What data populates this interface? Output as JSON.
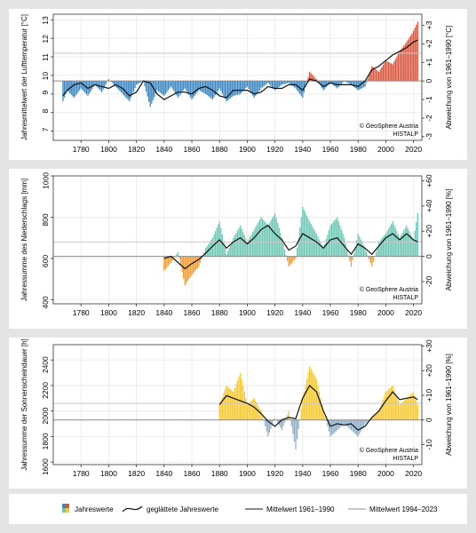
{
  "chart_data": [
    {
      "type": "bar",
      "ylabel": "Jahresmittelwert der Lufttemperatur [°C]",
      "y2label": "Abweichung von 1961–1990 [°C]",
      "ylim": [
        6.5,
        13.3
      ],
      "yticks": [
        7,
        8,
        9,
        10,
        11,
        12,
        13
      ],
      "y2ticks": [
        "-3",
        "-2",
        "-1",
        "0",
        "+1",
        "+2",
        "+3"
      ],
      "reference_1961_1990": 9.7,
      "mean_1994_2023": 11.2,
      "colors": {
        "above": "#d9553d",
        "below": "#3a86c2"
      },
      "credit": [
        "© GeoSphere Austria",
        "HISTALP"
      ],
      "x": [
        1767,
        1770,
        1775,
        1780,
        1785,
        1790,
        1795,
        1800,
        1805,
        1810,
        1815,
        1820,
        1825,
        1830,
        1835,
        1840,
        1845,
        1850,
        1855,
        1860,
        1865,
        1870,
        1875,
        1880,
        1885,
        1890,
        1895,
        1900,
        1905,
        1910,
        1915,
        1920,
        1925,
        1930,
        1935,
        1940,
        1945,
        1950,
        1955,
        1960,
        1965,
        1970,
        1975,
        1980,
        1985,
        1990,
        1995,
        2000,
        2005,
        2010,
        2015,
        2020,
        2023
      ],
      "values": [
        8.6,
        9.2,
        8.8,
        9.3,
        8.9,
        9.5,
        9.1,
        9.8,
        9.4,
        9.0,
        8.6,
        9.5,
        9.7,
        8.3,
        9.2,
        8.9,
        9.4,
        8.8,
        9.3,
        8.7,
        9.2,
        9.0,
        8.7,
        9.3,
        8.6,
        8.9,
        9.0,
        9.4,
        8.8,
        9.3,
        9.6,
        9.2,
        9.5,
        9.6,
        9.3,
        8.8,
        10.2,
        9.8,
        9.2,
        9.6,
        9.3,
        9.7,
        9.5,
        9.2,
        9.4,
        10.5,
        10.2,
        10.8,
        10.6,
        11.3,
        11.8,
        12.4,
        12.9
      ],
      "smoothed": [
        8.9,
        9.2,
        9.5,
        9.6,
        9.3,
        9.5,
        9.4,
        9.3,
        9.5,
        9.3,
        8.9,
        9.1,
        9.7,
        9.6,
        9.0,
        8.7,
        8.9,
        9.1,
        9.1,
        9.0,
        9.3,
        9.4,
        9.2,
        8.9,
        8.8,
        9.2,
        9.2,
        9.2,
        9.0,
        9.1,
        9.4,
        9.3,
        9.3,
        9.5,
        9.5,
        9.2,
        9.8,
        9.7,
        9.4,
        9.6,
        9.5,
        9.5,
        9.5,
        9.4,
        9.7,
        10.3,
        10.5,
        10.8,
        11.1,
        11.3,
        11.5,
        11.8,
        11.9
      ]
    },
    {
      "type": "bar",
      "ylabel": "Jahressumme des Niederschlags [mm]",
      "y2label": "Abweichung von 1961–1990 [%]",
      "ylim": [
        380,
        1000
      ],
      "yticks": [
        400,
        600,
        800,
        1000
      ],
      "y2ticks": [
        "-20",
        "0",
        "+20",
        "+40",
        "+60"
      ],
      "reference_1961_1990": 610,
      "mean_1994_2023": 680,
      "colors": {
        "above": "#6cc7b4",
        "below": "#f29a2e"
      },
      "credit": [
        "© GeoSphere Austria",
        "HISTALP"
      ],
      "x": [
        1840,
        1845,
        1850,
        1855,
        1860,
        1865,
        1870,
        1875,
        1880,
        1885,
        1890,
        1895,
        1900,
        1905,
        1910,
        1915,
        1920,
        1925,
        1930,
        1935,
        1940,
        1945,
        1950,
        1955,
        1960,
        1965,
        1970,
        1975,
        1980,
        1985,
        1990,
        1995,
        2000,
        2005,
        2010,
        2015,
        2020,
        2023
      ],
      "values": [
        540,
        580,
        630,
        470,
        520,
        560,
        650,
        700,
        780,
        620,
        700,
        760,
        680,
        740,
        800,
        760,
        820,
        700,
        560,
        600,
        850,
        780,
        720,
        650,
        760,
        800,
        700,
        560,
        720,
        650,
        560,
        680,
        720,
        780,
        700,
        760,
        690,
        820
      ],
      "smoothed": [
        600,
        610,
        580,
        550,
        575,
        595,
        625,
        660,
        690,
        650,
        680,
        700,
        670,
        700,
        740,
        760,
        720,
        690,
        640,
        660,
        720,
        700,
        680,
        650,
        690,
        700,
        660,
        620,
        670,
        650,
        620,
        660,
        700,
        720,
        690,
        720,
        690,
        680
      ]
    },
    {
      "type": "bar",
      "ylabel": "Jahressumme der Sonnenscheindauer [h]",
      "y2label": "Abweichung von 1961–1990 [%]",
      "ylim": [
        1580,
        2520
      ],
      "yticks": [
        1600,
        1800,
        2000,
        2200,
        2400
      ],
      "y2ticks": [
        "-10",
        "0",
        "+10",
        "+20",
        "+30"
      ],
      "reference_1961_1990": 1930,
      "mean_1994_2023": 2060,
      "colors": {
        "above": "#f7c82c",
        "below": "#8eaec6"
      },
      "credit": [
        "© GeoSphere Austria",
        "HISTALP"
      ],
      "x": [
        1880,
        1885,
        1890,
        1895,
        1900,
        1905,
        1910,
        1915,
        1920,
        1925,
        1930,
        1935,
        1940,
        1945,
        1950,
        1955,
        1960,
        1965,
        1970,
        1975,
        1980,
        1985,
        1990,
        1995,
        2000,
        2005,
        2010,
        2015,
        2020,
        2023
      ],
      "values": [
        2050,
        2200,
        2150,
        2300,
        2050,
        2100,
        2000,
        1800,
        1950,
        1850,
        2000,
        1700,
        2100,
        2350,
        2250,
        2000,
        1800,
        1850,
        1900,
        1850,
        1800,
        1900,
        1950,
        2000,
        2150,
        2200,
        2050,
        2100,
        2150,
        2050
      ],
      "smoothed": [
        2050,
        2120,
        2100,
        2080,
        2060,
        2030,
        1980,
        1920,
        1880,
        1930,
        1950,
        1940,
        2100,
        2200,
        2150,
        2000,
        1880,
        1900,
        1890,
        1900,
        1850,
        1880,
        1950,
        2000,
        2080,
        2150,
        2090,
        2100,
        2110,
        2090
      ]
    }
  ],
  "xaxis": {
    "xlim": [
      1760,
      2026
    ],
    "ticks": [
      1780,
      1800,
      1820,
      1840,
      1860,
      1880,
      1900,
      1920,
      1940,
      1960,
      1980,
      2000,
      2020
    ]
  },
  "legend": {
    "yearly": "Jahreswerte",
    "smoothed": "geglättete Jahreswerte",
    "mean_1961_1990": "Mittelwert 1961–1990",
    "mean_1994_2023": "Mittelwert 1994–2023"
  }
}
